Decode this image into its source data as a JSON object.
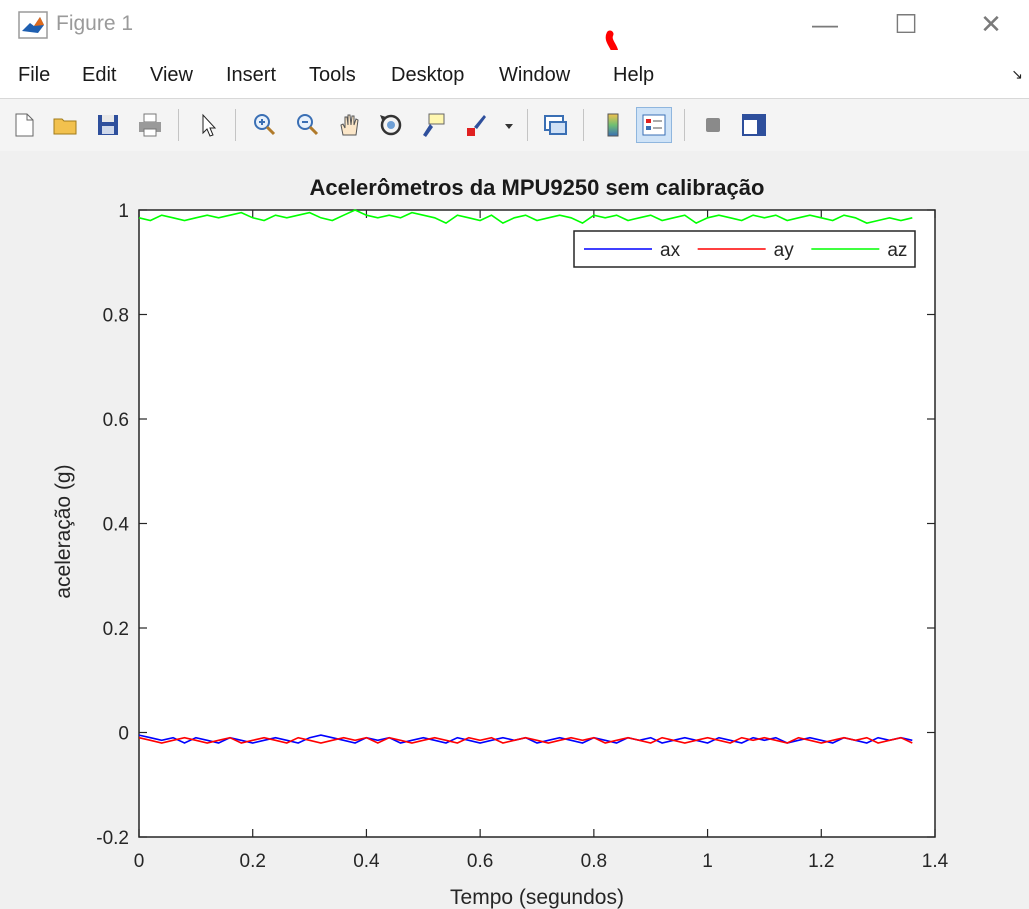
{
  "window": {
    "title": "Figure 1",
    "controls": {
      "minimize": "—",
      "maximize": "☐",
      "close": "✕"
    }
  },
  "menu": {
    "items": [
      "File",
      "Edit",
      "View",
      "Insert",
      "Tools",
      "Desktop",
      "Window",
      "Help"
    ]
  },
  "toolbar": {
    "buttons": [
      {
        "name": "new-figure-button",
        "icon": "new-file-icon"
      },
      {
        "name": "open-file-button",
        "icon": "folder-icon"
      },
      {
        "name": "save-button",
        "icon": "floppy-icon"
      },
      {
        "name": "print-button",
        "icon": "printer-icon"
      },
      {
        "name": "edit-plot-button",
        "icon": "arrow-cursor-icon"
      },
      {
        "name": "zoom-in-button",
        "icon": "zoom-in-icon"
      },
      {
        "name": "zoom-out-button",
        "icon": "zoom-out-icon"
      },
      {
        "name": "pan-button",
        "icon": "hand-icon"
      },
      {
        "name": "rotate-3d-button",
        "icon": "rotate-icon"
      },
      {
        "name": "data-cursor-button",
        "icon": "data-tip-icon"
      },
      {
        "name": "brush-button",
        "icon": "brush-icon"
      },
      {
        "name": "link-plot-button",
        "icon": "link-plot-icon"
      },
      {
        "name": "colorbar-button",
        "icon": "colorbar-icon"
      },
      {
        "name": "legend-button",
        "icon": "legend-icon",
        "active": true
      },
      {
        "name": "hide-plot-tools-button",
        "icon": "gray-square-icon"
      },
      {
        "name": "show-plot-tools-button",
        "icon": "panel-icon"
      }
    ]
  },
  "chart_data": {
    "type": "line",
    "title": "Acelerômetros da MPU9250 sem calibração",
    "xlabel": "Tempo (segundos)",
    "ylabel": "aceleração (g)",
    "xlim": [
      0,
      1.4
    ],
    "ylim": [
      -0.2,
      1
    ],
    "xticks": [
      "0",
      "0.2",
      "0.4",
      "0.6",
      "0.8",
      "1",
      "1.2",
      "1.4"
    ],
    "yticks": [
      "-0.2",
      "0",
      "0.2",
      "0.4",
      "0.6",
      "0.8",
      "1"
    ],
    "x_start": 0,
    "x_step": 0.02,
    "legend_position": "top-right",
    "grid": false,
    "series": [
      {
        "name": "ax",
        "color": "#0000ff",
        "values": [
          -0.005,
          -0.01,
          -0.015,
          -0.01,
          -0.02,
          -0.01,
          -0.015,
          -0.02,
          -0.01,
          -0.015,
          -0.02,
          -0.015,
          -0.01,
          -0.015,
          -0.02,
          -0.01,
          -0.005,
          -0.01,
          -0.015,
          -0.02,
          -0.01,
          -0.015,
          -0.01,
          -0.02,
          -0.015,
          -0.01,
          -0.015,
          -0.02,
          -0.01,
          -0.015,
          -0.02,
          -0.015,
          -0.01,
          -0.015,
          -0.01,
          -0.02,
          -0.015,
          -0.01,
          -0.015,
          -0.02,
          -0.01,
          -0.015,
          -0.02,
          -0.01,
          -0.015,
          -0.01,
          -0.02,
          -0.015,
          -0.01,
          -0.015,
          -0.02,
          -0.01,
          -0.015,
          -0.02,
          -0.01,
          -0.015,
          -0.01,
          -0.02,
          -0.015,
          -0.01,
          -0.015,
          -0.02,
          -0.01,
          -0.015,
          -0.02,
          -0.01,
          -0.015,
          -0.01,
          -0.015
        ]
      },
      {
        "name": "ay",
        "color": "#ff0000",
        "values": [
          -0.01,
          -0.015,
          -0.02,
          -0.015,
          -0.01,
          -0.015,
          -0.02,
          -0.015,
          -0.01,
          -0.02,
          -0.015,
          -0.01,
          -0.015,
          -0.02,
          -0.01,
          -0.015,
          -0.02,
          -0.015,
          -0.01,
          -0.015,
          -0.01,
          -0.02,
          -0.01,
          -0.015,
          -0.02,
          -0.015,
          -0.01,
          -0.015,
          -0.02,
          -0.01,
          -0.015,
          -0.01,
          -0.02,
          -0.015,
          -0.01,
          -0.015,
          -0.02,
          -0.015,
          -0.01,
          -0.015,
          -0.01,
          -0.02,
          -0.015,
          -0.01,
          -0.015,
          -0.02,
          -0.01,
          -0.015,
          -0.02,
          -0.015,
          -0.01,
          -0.015,
          -0.02,
          -0.01,
          -0.015,
          -0.01,
          -0.015,
          -0.02,
          -0.01,
          -0.015,
          -0.02,
          -0.015,
          -0.01,
          -0.015,
          -0.01,
          -0.02,
          -0.015,
          -0.01,
          -0.02
        ]
      },
      {
        "name": "az",
        "color": "#00ff00",
        "values": [
          0.985,
          0.98,
          0.99,
          0.985,
          0.98,
          0.985,
          0.99,
          0.985,
          0.99,
          0.995,
          0.985,
          0.98,
          0.99,
          0.985,
          0.99,
          0.995,
          0.985,
          0.98,
          0.99,
          1.0,
          0.99,
          0.985,
          0.99,
          0.985,
          0.995,
          0.99,
          0.985,
          0.975,
          0.99,
          0.985,
          0.98,
          0.99,
          0.975,
          0.985,
          0.99,
          0.98,
          0.985,
          0.99,
          0.985,
          0.975,
          0.99,
          0.985,
          0.99,
          0.98,
          0.985,
          0.99,
          0.98,
          0.985,
          0.99,
          0.975,
          0.985,
          0.99,
          0.985,
          0.98,
          0.99,
          0.985,
          0.99,
          0.98,
          0.985,
          0.99,
          0.985,
          0.98,
          0.99,
          0.985,
          0.975,
          0.98,
          0.985,
          0.98,
          0.985
        ]
      }
    ]
  }
}
